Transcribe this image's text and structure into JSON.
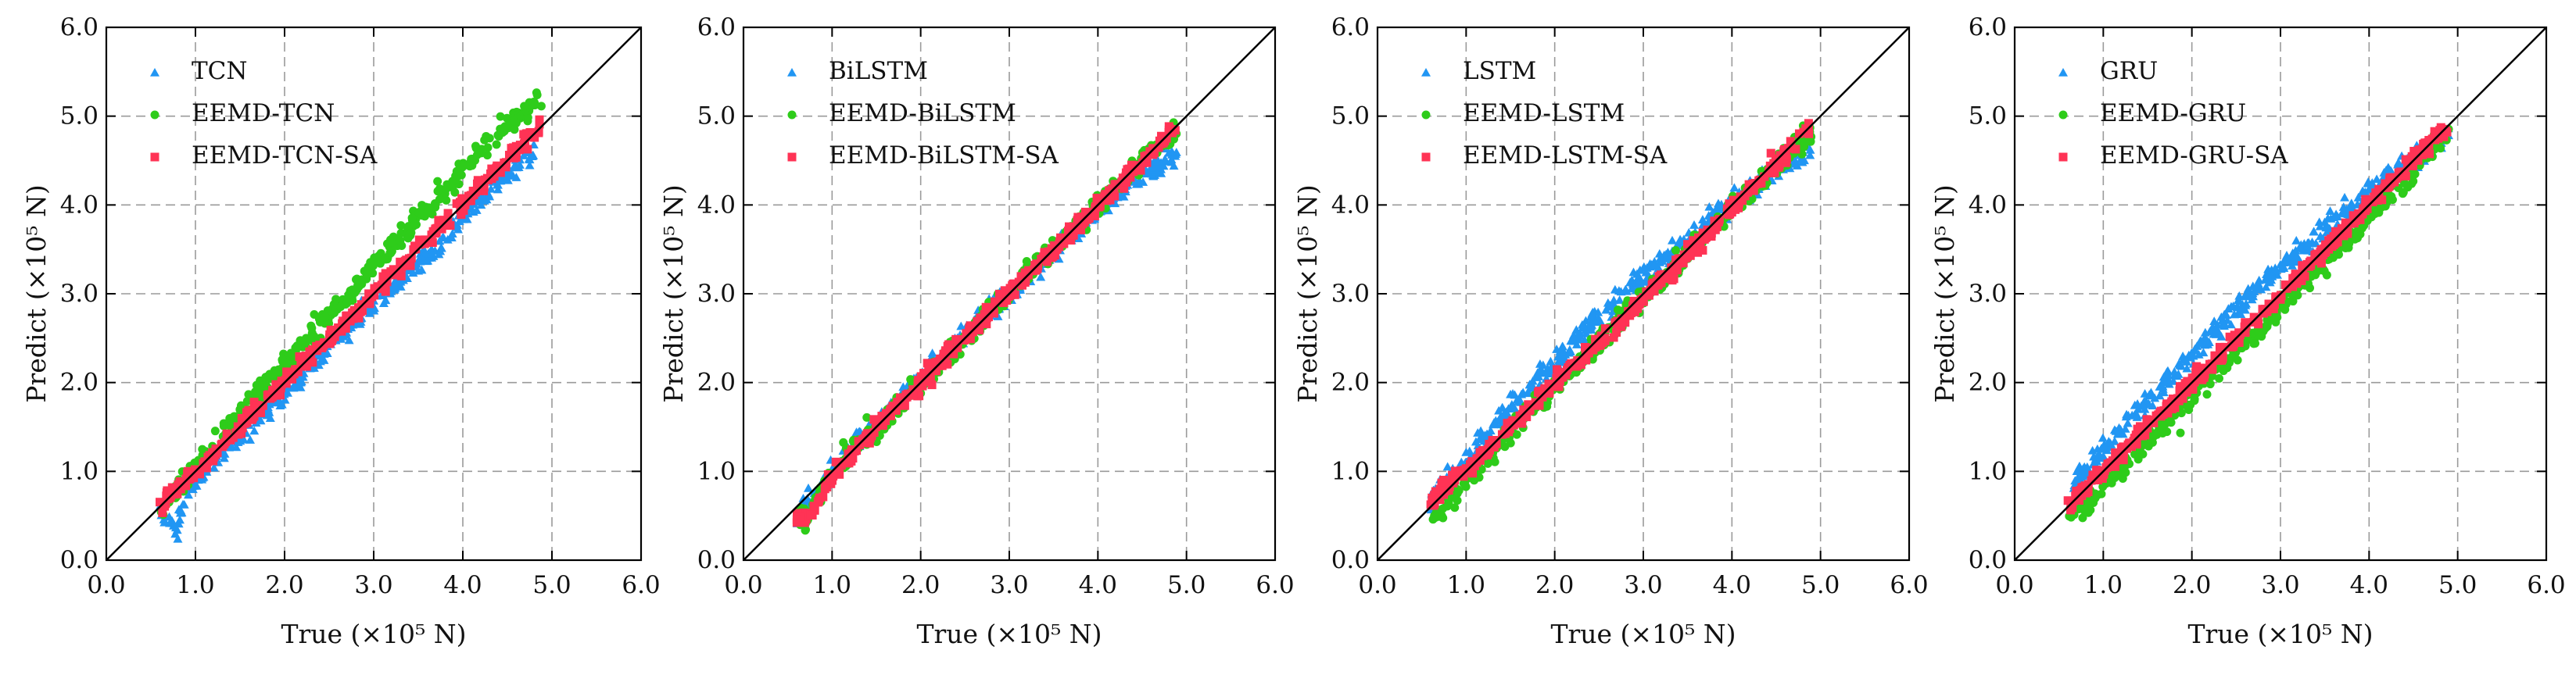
{
  "figure": {
    "background": "#ffffff",
    "colors": {
      "baseline": "#2196f3",
      "eemd": "#2ecc1a",
      "eemd_sa": "#ff3355",
      "diagonal": "#000000",
      "grid": "#9a9a9a"
    }
  },
  "chart_data": [
    {
      "type": "scatter",
      "title": "",
      "xlabel": "True (×10⁵ N)",
      "ylabel": "Predict (×10⁵ N)",
      "xlim": [
        0.0,
        6.0
      ],
      "ylim": [
        0.0,
        6.0
      ],
      "xticks": [
        "0.0",
        "1.0",
        "2.0",
        "3.0",
        "4.0",
        "5.0",
        "6.0"
      ],
      "yticks": [
        "0.0",
        "1.0",
        "2.0",
        "3.0",
        "4.0",
        "5.0",
        "6.0"
      ],
      "grid": true,
      "legend_position": "top-left",
      "reference_line": {
        "x": [
          0.0,
          6.0
        ],
        "y": [
          0.0,
          6.0
        ]
      },
      "series": [
        {
          "name": "TCN",
          "marker": "triangle",
          "color": "#2196f3",
          "x": [
            0.6,
            0.8,
            0.9,
            1.2,
            1.6,
            2.0,
            2.4,
            2.8,
            3.2,
            3.6,
            4.0,
            4.4,
            4.8
          ],
          "y": [
            0.55,
            0.35,
            0.75,
            1.15,
            1.5,
            1.85,
            2.3,
            2.7,
            3.05,
            3.45,
            3.85,
            4.25,
            4.6
          ]
        },
        {
          "name": "EEMD-TCN",
          "marker": "circle",
          "color": "#2ecc1a",
          "x": [
            0.6,
            1.0,
            1.5,
            2.0,
            2.5,
            3.0,
            3.5,
            4.0,
            4.5,
            4.9
          ],
          "y": [
            0.5,
            1.05,
            1.65,
            2.2,
            2.75,
            3.3,
            3.85,
            4.4,
            4.9,
            5.2
          ]
        },
        {
          "name": "EEMD-TCN-SA",
          "marker": "square",
          "color": "#ff3355",
          "x": [
            0.6,
            1.0,
            1.5,
            2.0,
            2.5,
            3.0,
            3.5,
            4.0,
            4.5,
            4.9
          ],
          "y": [
            0.62,
            1.0,
            1.5,
            2.0,
            2.5,
            3.0,
            3.5,
            4.0,
            4.5,
            4.9
          ]
        }
      ]
    },
    {
      "type": "scatter",
      "title": "",
      "xlabel": "True (×10⁵ N)",
      "ylabel": "Predict (×10⁵ N)",
      "xlim": [
        0.0,
        6.0
      ],
      "ylim": [
        0.0,
        6.0
      ],
      "xticks": [
        "0.0",
        "1.0",
        "2.0",
        "3.0",
        "4.0",
        "5.0",
        "6.0"
      ],
      "yticks": [
        "0.0",
        "1.0",
        "2.0",
        "3.0",
        "4.0",
        "5.0",
        "6.0"
      ],
      "grid": true,
      "legend_position": "top-left",
      "reference_line": {
        "x": [
          0.0,
          6.0
        ],
        "y": [
          0.0,
          6.0
        ]
      },
      "series": [
        {
          "name": "BiLSTM",
          "marker": "triangle",
          "color": "#2196f3",
          "x": [
            0.6,
            1.0,
            1.5,
            2.0,
            2.5,
            3.0,
            3.5,
            4.0,
            4.5,
            4.9
          ],
          "y": [
            0.45,
            1.0,
            1.55,
            2.05,
            2.55,
            3.0,
            3.5,
            3.95,
            4.35,
            4.55
          ]
        },
        {
          "name": "EEMD-BiLSTM",
          "marker": "circle",
          "color": "#2ecc1a",
          "x": [
            0.6,
            0.7,
            1.0,
            1.5,
            2.0,
            2.5,
            3.0,
            3.5,
            4.0,
            4.5,
            4.9
          ],
          "y": [
            0.5,
            0.45,
            1.0,
            1.5,
            2.0,
            2.5,
            3.0,
            3.5,
            4.0,
            4.5,
            4.85
          ]
        },
        {
          "name": "EEMD-BiLSTM-SA",
          "marker": "square",
          "color": "#ff3355",
          "x": [
            0.6,
            0.75,
            1.0,
            1.5,
            2.0,
            2.5,
            3.0,
            3.5,
            4.0,
            4.5,
            4.9
          ],
          "y": [
            0.45,
            0.5,
            0.95,
            1.5,
            2.0,
            2.5,
            3.0,
            3.5,
            4.0,
            4.5,
            4.9
          ]
        }
      ]
    },
    {
      "type": "scatter",
      "title": "",
      "xlabel": "True (×10⁵ N)",
      "ylabel": "Predict (×10⁵ N)",
      "xlim": [
        0.0,
        6.0
      ],
      "ylim": [
        0.0,
        6.0
      ],
      "xticks": [
        "0.0",
        "1.0",
        "2.0",
        "3.0",
        "4.0",
        "5.0",
        "6.0"
      ],
      "yticks": [
        "0.0",
        "1.0",
        "2.0",
        "3.0",
        "4.0",
        "5.0",
        "6.0"
      ],
      "grid": true,
      "legend_position": "top-left",
      "reference_line": {
        "x": [
          0.0,
          6.0
        ],
        "y": [
          0.0,
          6.0
        ]
      },
      "series": [
        {
          "name": "LSTM",
          "marker": "triangle",
          "color": "#2196f3",
          "x": [
            0.6,
            1.0,
            1.5,
            2.0,
            2.5,
            3.0,
            3.5,
            4.0,
            4.5,
            4.9
          ],
          "y": [
            0.7,
            1.1,
            1.75,
            2.25,
            2.75,
            3.2,
            3.6,
            4.05,
            4.4,
            4.65
          ]
        },
        {
          "name": "EEMD-LSTM",
          "marker": "circle",
          "color": "#2ecc1a",
          "x": [
            0.6,
            0.7,
            1.0,
            1.5,
            2.0,
            2.5,
            3.0,
            3.5,
            4.0,
            4.5,
            4.9
          ],
          "y": [
            0.5,
            0.45,
            0.9,
            1.45,
            1.95,
            2.45,
            2.95,
            3.45,
            3.95,
            4.45,
            4.85
          ]
        },
        {
          "name": "EEMD-LSTM-SA",
          "marker": "square",
          "color": "#ff3355",
          "x": [
            0.6,
            1.0,
            1.5,
            2.0,
            2.5,
            3.0,
            3.5,
            4.0,
            4.5,
            4.9
          ],
          "y": [
            0.65,
            1.0,
            1.5,
            2.0,
            2.45,
            2.95,
            3.45,
            3.95,
            4.45,
            4.9
          ]
        }
      ]
    },
    {
      "type": "scatter",
      "title": "",
      "xlabel": "True (×10⁵ N)",
      "ylabel": "Predict (×10⁵ N)",
      "xlim": [
        0.0,
        6.0
      ],
      "ylim": [
        0.0,
        6.0
      ],
      "xticks": [
        "0.0",
        "1.0",
        "2.0",
        "3.0",
        "4.0",
        "5.0",
        "6.0"
      ],
      "yticks": [
        "0.0",
        "1.0",
        "2.0",
        "3.0",
        "4.0",
        "5.0",
        "6.0"
      ],
      "grid": true,
      "legend_position": "top-left",
      "reference_line": {
        "x": [
          0.0,
          6.0
        ],
        "y": [
          0.0,
          6.0
        ]
      },
      "series": [
        {
          "name": "GRU",
          "marker": "triangle",
          "color": "#2196f3",
          "x": [
            0.6,
            1.0,
            1.5,
            2.0,
            2.5,
            3.0,
            3.5,
            4.0,
            4.5,
            4.9
          ],
          "y": [
            0.8,
            1.25,
            1.8,
            2.3,
            2.85,
            3.3,
            3.75,
            4.15,
            4.5,
            4.75
          ]
        },
        {
          "name": "EEMD-GRU",
          "marker": "circle",
          "color": "#2ecc1a",
          "x": [
            0.6,
            0.7,
            1.0,
            1.5,
            2.0,
            2.5,
            3.0,
            3.5,
            4.0,
            4.5,
            4.9
          ],
          "y": [
            0.55,
            0.5,
            0.85,
            1.35,
            1.85,
            2.35,
            2.85,
            3.35,
            3.85,
            4.4,
            4.85
          ]
        },
        {
          "name": "EEMD-GRU-SA",
          "marker": "square",
          "color": "#ff3355",
          "x": [
            0.6,
            1.0,
            1.5,
            2.0,
            2.5,
            3.0,
            3.5,
            4.0,
            4.5,
            4.9
          ],
          "y": [
            0.6,
            1.0,
            1.5,
            2.0,
            2.5,
            3.0,
            3.5,
            4.0,
            4.5,
            4.9
          ]
        }
      ]
    }
  ]
}
